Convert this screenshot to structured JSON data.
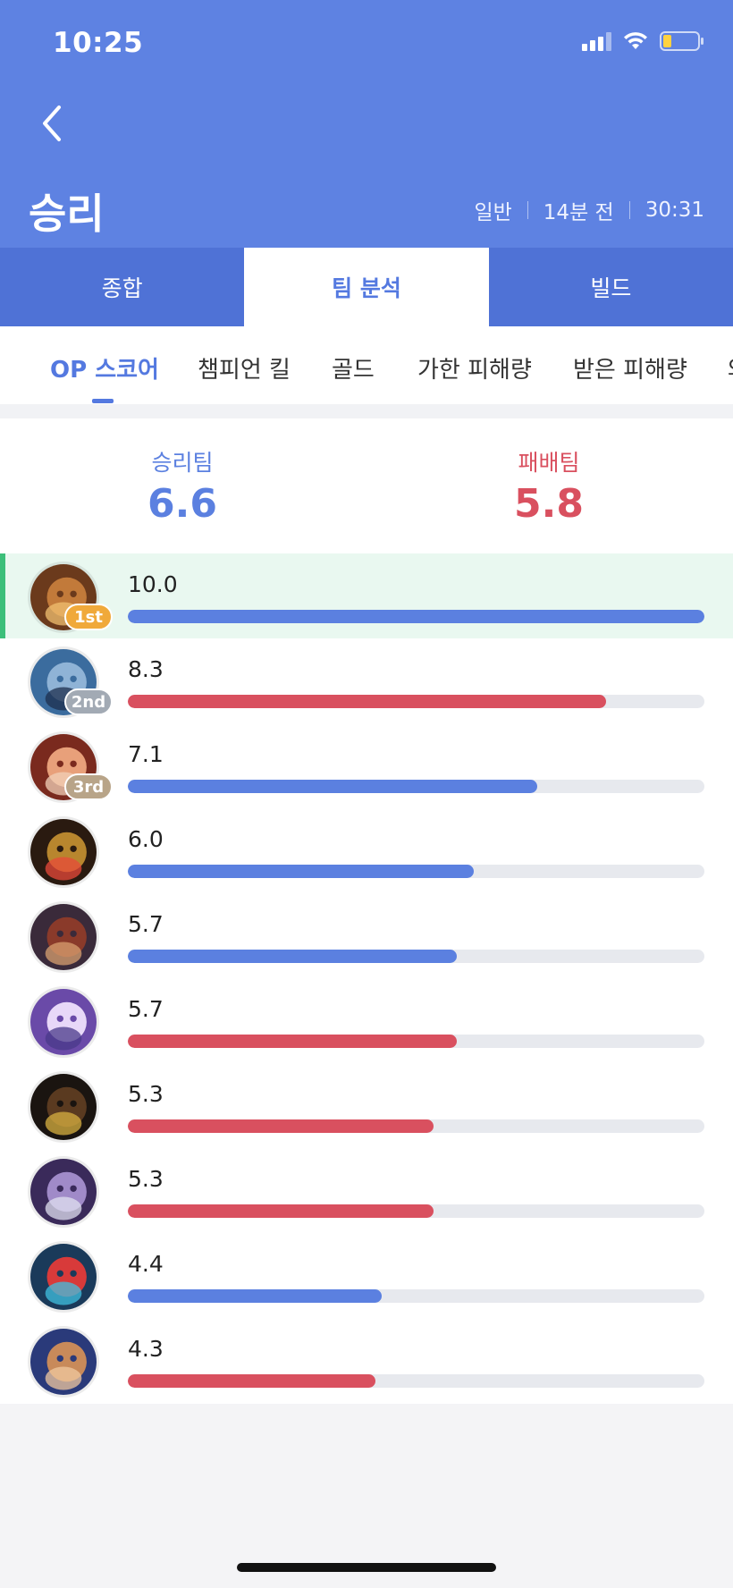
{
  "status_bar": {
    "time": "10:25"
  },
  "header": {
    "title": "승리",
    "meta": {
      "mode": "일반",
      "ago": "14분 전",
      "duration": "30:31"
    }
  },
  "tabs": [
    {
      "label": "종합",
      "active": false
    },
    {
      "label": "팀 분석",
      "active": true
    },
    {
      "label": "빌드",
      "active": false
    }
  ],
  "subtabs": [
    {
      "label": "OP 스코어",
      "active": true
    },
    {
      "label": "챔피언 킬",
      "active": false
    },
    {
      "label": "골드",
      "active": false
    },
    {
      "label": "가한 피해량",
      "active": false
    },
    {
      "label": "받은 피해량",
      "active": false
    },
    {
      "label": "와",
      "active": false
    }
  ],
  "teams": {
    "win": {
      "label": "승리팀",
      "score": "6.6"
    },
    "loss": {
      "label": "패배팀",
      "score": "5.8"
    }
  },
  "colors": {
    "win": "#5b80e0",
    "loss": "#d9505f",
    "track": "#e7e9ee",
    "gold": "#f0a93a",
    "silver": "#a2aab4",
    "bronze": "#b8a488"
  },
  "scale_max": 10.0,
  "players": [
    {
      "score": "10.0",
      "value": 10.0,
      "team": "win",
      "rank": "1st",
      "rank_color": "#f0a93a",
      "avatar": "champion-portrait-lion",
      "highlight": true
    },
    {
      "score": "8.3",
      "value": 8.3,
      "team": "loss",
      "rank": "2nd",
      "rank_color": "#a2aab4",
      "avatar": "champion-portrait-robot",
      "highlight": false
    },
    {
      "score": "7.1",
      "value": 7.1,
      "team": "win",
      "rank": "3rd",
      "rank_color": "#b8a488",
      "avatar": "champion-portrait-redhead",
      "highlight": false
    },
    {
      "score": "6.0",
      "value": 6.0,
      "team": "win",
      "rank": "",
      "rank_color": "",
      "avatar": "champion-portrait-beast",
      "highlight": false
    },
    {
      "score": "5.7",
      "value": 5.7,
      "team": "win",
      "rank": "",
      "rank_color": "",
      "avatar": "champion-portrait-monkey",
      "highlight": false
    },
    {
      "score": "5.7",
      "value": 5.7,
      "team": "loss",
      "rank": "",
      "rank_color": "",
      "avatar": "champion-portrait-yordle",
      "highlight": false
    },
    {
      "score": "5.3",
      "value": 5.3,
      "team": "loss",
      "rank": "",
      "rank_color": "",
      "avatar": "champion-portrait-dark",
      "highlight": false
    },
    {
      "score": "5.3",
      "value": 5.3,
      "team": "loss",
      "rank": "",
      "rank_color": "",
      "avatar": "champion-portrait-purple",
      "highlight": false
    },
    {
      "score": "4.4",
      "value": 4.4,
      "team": "win",
      "rank": "",
      "rank_color": "",
      "avatar": "champion-portrait-red-blue",
      "highlight": false
    },
    {
      "score": "4.3",
      "value": 4.3,
      "team": "loss",
      "rank": "",
      "rank_color": "",
      "avatar": "champion-portrait-warrior",
      "highlight": false
    }
  ]
}
